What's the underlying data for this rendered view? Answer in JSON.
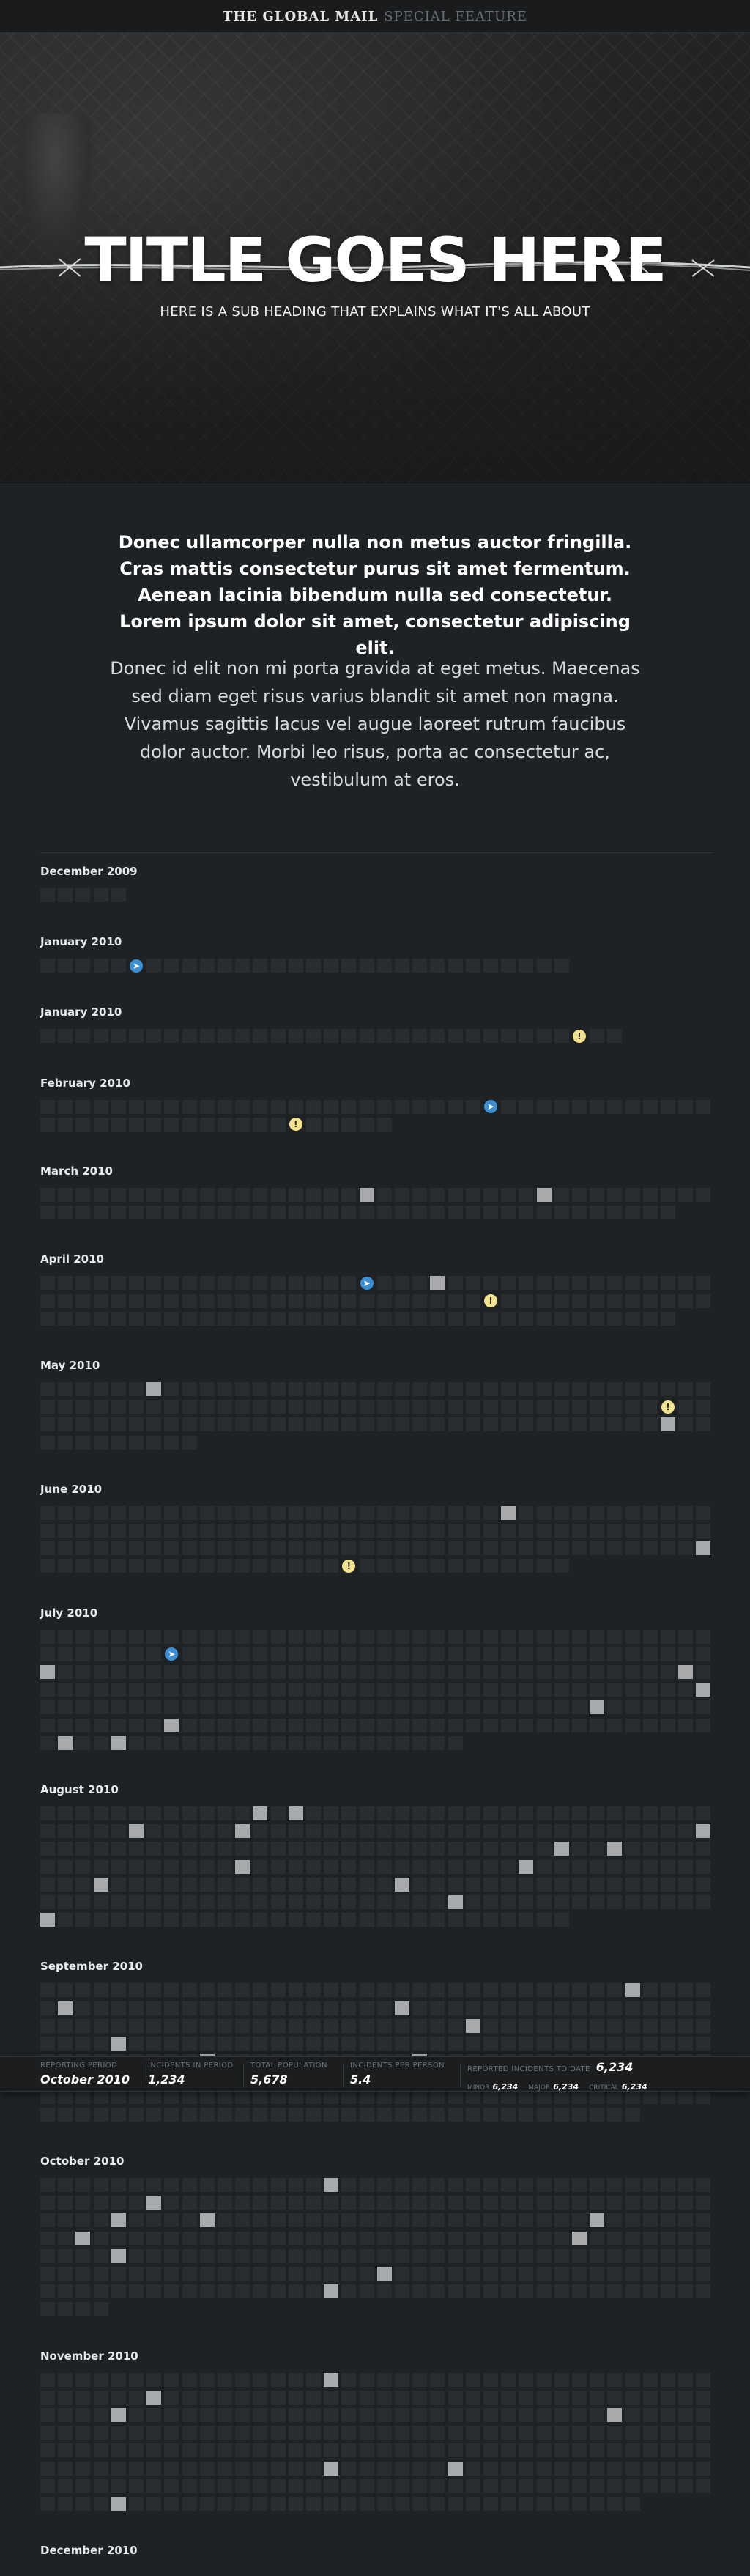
{
  "header": {
    "brand": "THE GLOBAL MAIL",
    "feature": "SPECIAL FEATURE"
  },
  "hero": {
    "title": "TITLE GOES HERE",
    "subtitle": "HERE IS A SUB HEADING THAT EXPLAINS WHAT IT'S ALL ABOUT"
  },
  "intro": {
    "lead": "Donec ullamcorper nulla non metus auctor fringilla. Cras mattis consectetur purus sit amet fermentum. Aenean lacinia bibendum nulla sed consectetur. Lorem ipsum dolor sit amet, consectetur adipiscing elit.",
    "body": "Donec id elit non mi porta gravida at eget metus. Maecenas sed diam eget risus varius blandit sit amet non magna. Vivamus sagittis lacus vel augue laoreet rutrum faucibus dolor auctor. Morbi leo risus, porta ac consectetur ac, vestibulum at eros."
  },
  "colors": {
    "background": "#1f2224",
    "cell_empty": "#292d30",
    "cell_incident": "#a8a9aa",
    "marker_info": "#3c8fd2",
    "marker_alert": "#f4e28c"
  },
  "months": [
    {
      "label": "December 2009",
      "total": 5,
      "incidents": [],
      "markers": []
    },
    {
      "label": "January 2010",
      "total": 30,
      "incidents": [],
      "markers": [
        {
          "index": 5,
          "type": "info",
          "icon": "shark-icon"
        }
      ]
    },
    {
      "label": "January 2010",
      "total": 33,
      "incidents": [],
      "markers": [
        {
          "index": 30,
          "type": "alert",
          "icon": "exclamation-icon"
        }
      ]
    },
    {
      "label": "February 2010",
      "total": 58,
      "incidents": [],
      "markers": [
        {
          "index": 25,
          "type": "info",
          "icon": "shark-icon"
        },
        {
          "index": 52,
          "type": "alert",
          "icon": "exclamation-icon"
        }
      ]
    },
    {
      "label": "March 2010",
      "total": 74,
      "incidents": [
        18,
        28
      ],
      "markers": []
    },
    {
      "label": "April 2010",
      "total": 112,
      "incidents": [
        22
      ],
      "markers": [
        {
          "index": 18,
          "type": "info",
          "icon": "shark-icon"
        },
        {
          "index": 63,
          "type": "alert",
          "icon": "exclamation-icon"
        }
      ]
    },
    {
      "label": "May 2010",
      "total": 123,
      "incidents": [
        6,
        111
      ],
      "markers": [
        {
          "index": 73,
          "type": "alert",
          "icon": "exclamation-icon"
        }
      ]
    },
    {
      "label": "June 2010",
      "total": 144,
      "incidents": [
        26,
        113
      ],
      "markers": [
        {
          "index": 131,
          "type": "alert",
          "icon": "exclamation-icon"
        }
      ]
    },
    {
      "label": "July 2010",
      "total": 252,
      "incidents": [
        76,
        112,
        151,
        183,
        197,
        229,
        232
      ],
      "markers": [
        {
          "index": 45,
          "type": "info",
          "icon": "shark-icon"
        }
      ]
    },
    {
      "label": "August 2010",
      "total": 258,
      "incidents": [
        12,
        14,
        43,
        49,
        75,
        105,
        108,
        125,
        141,
        155,
        172,
        213,
        228
      ],
      "markers": []
    },
    {
      "label": "September 2010",
      "total": 300,
      "incidents": [
        33,
        39,
        58,
        100,
        118,
        161,
        173,
        209
      ],
      "markers": []
    },
    {
      "label": "October 2010",
      "total": 270,
      "incidents": [
        16,
        44,
        80,
        85,
        107,
        116,
        144,
        156,
        209,
        244
      ],
      "markers": []
    },
    {
      "label": "November 2010",
      "total": 300,
      "incidents": [
        16,
        44,
        80,
        108,
        206,
        213,
        270
      ],
      "markers": []
    },
    {
      "label": "December 2010",
      "total": 76,
      "incidents": [],
      "markers": []
    }
  ],
  "stats": {
    "reporting_period": {
      "label": "REPORTING PERIOD",
      "value": "October 2010"
    },
    "incidents_in_period": {
      "label": "INCIDENTS IN PERIOD",
      "value": "1,234"
    },
    "total_population": {
      "label": "TOTAL POPULATION",
      "value": "5,678"
    },
    "incidents_per_person": {
      "label": "INCIDENTS PER PERSON",
      "value": "5.4"
    },
    "reported_to_date": {
      "label": "REPORTED INCIDENTS TO DATE",
      "value": "6,234",
      "minor_label": "MINOR",
      "minor_value": "6,234",
      "major_label": "MAJOR",
      "major_value": "6,234",
      "critical_label": "CRITICAL",
      "critical_value": "6,234"
    }
  }
}
